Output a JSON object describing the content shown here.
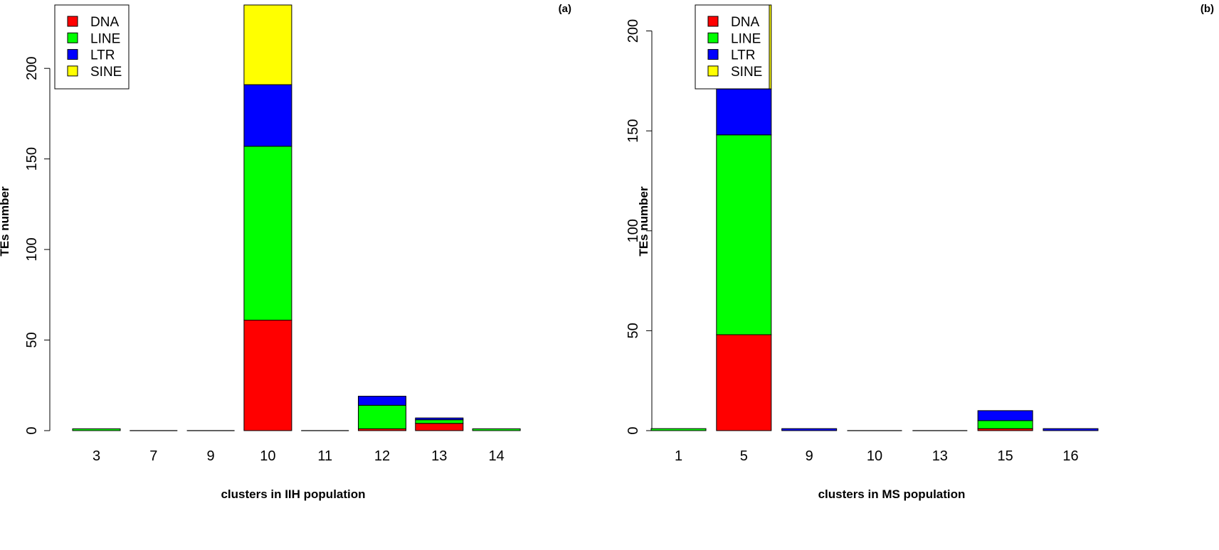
{
  "colors": {
    "DNA": "#ff0000",
    "LINE": "#00ff00",
    "LTR": "#0000ff",
    "SINE": "#ffff00"
  },
  "chart_data": [
    {
      "type": "bar",
      "stacked": true,
      "panel_label": "(a)",
      "categories": [
        "3",
        "7",
        "9",
        "10",
        "11",
        "12",
        "13",
        "14"
      ],
      "series": [
        {
          "name": "DNA",
          "values": [
            0,
            0,
            0,
            61,
            0,
            1,
            4,
            0
          ]
        },
        {
          "name": "LINE",
          "values": [
            1,
            0,
            0,
            96,
            0,
            13,
            2,
            1
          ]
        },
        {
          "name": "LTR",
          "values": [
            0,
            0,
            0,
            34,
            0,
            5,
            1,
            0
          ]
        },
        {
          "name": "SINE",
          "values": [
            0,
            0,
            0,
            44,
            0,
            0,
            0,
            0
          ]
        }
      ],
      "xlabel": "clusters in IIH population",
      "ylabel": "TEs number",
      "yticks": [
        0,
        50,
        100,
        150,
        200
      ],
      "ylim": [
        0,
        235
      ],
      "legend": [
        "DNA",
        "LINE",
        "LTR",
        "SINE"
      ],
      "legend_position": "top-left"
    },
    {
      "type": "bar",
      "stacked": true,
      "panel_label": "(b)",
      "categories": [
        "1",
        "5",
        "9",
        "10",
        "13",
        "15",
        "16"
      ],
      "series": [
        {
          "name": "DNA",
          "values": [
            0,
            48,
            0,
            0,
            0,
            1,
            0
          ]
        },
        {
          "name": "LINE",
          "values": [
            1,
            100,
            0,
            0,
            0,
            4,
            0
          ]
        },
        {
          "name": "LTR",
          "values": [
            0,
            23,
            1,
            0,
            0,
            5,
            1
          ]
        },
        {
          "name": "SINE",
          "values": [
            0,
            42,
            0,
            0,
            0,
            0,
            0
          ]
        }
      ],
      "xlabel": "clusters in MS population",
      "ylabel": "TEs number",
      "yticks": [
        0,
        50,
        100,
        150,
        200
      ],
      "ylim": [
        0,
        213
      ],
      "legend": [
        "DNA",
        "LINE",
        "LTR",
        "SINE"
      ],
      "legend_position": "top-left"
    }
  ]
}
